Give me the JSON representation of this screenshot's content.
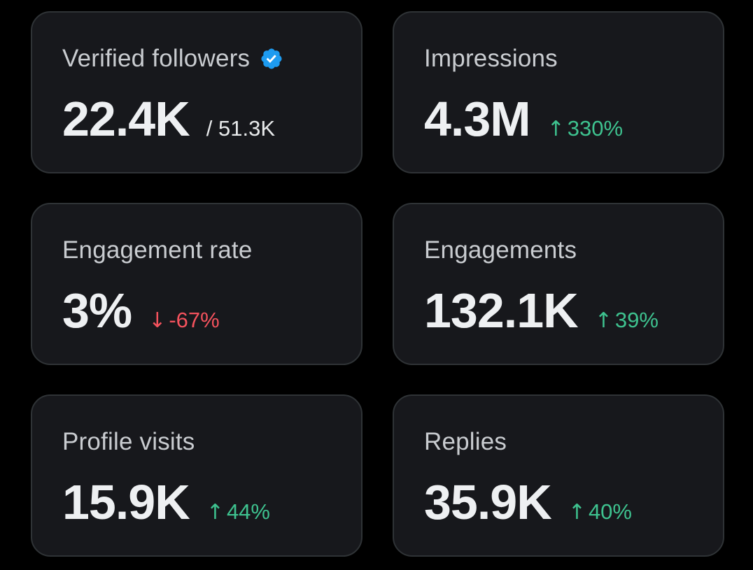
{
  "colors": {
    "background": "#000000",
    "card": "#17181c",
    "card_border": "#2f3336",
    "label": "#c9ccd0",
    "value": "#eef0f2",
    "positive": "#3ec28f",
    "negative": "#f4525d",
    "verified_badge": "#1d9bf0"
  },
  "cards": [
    {
      "label": "Verified followers",
      "icon": "verified-badge-icon",
      "value": "22.4K",
      "total": "/ 51.3K"
    },
    {
      "label": "Impressions",
      "value": "4.3M",
      "change": {
        "direction": "up",
        "arrow": "↑",
        "text": "330%"
      }
    },
    {
      "label": "Engagement rate",
      "value": "3%",
      "change": {
        "direction": "down",
        "arrow": "↓",
        "text": "-67%"
      }
    },
    {
      "label": "Engagements",
      "value": "132.1K",
      "change": {
        "direction": "up",
        "arrow": "↑",
        "text": "39%"
      }
    },
    {
      "label": "Profile visits",
      "value": "15.9K",
      "change": {
        "direction": "up",
        "arrow": "↑",
        "text": "44%"
      }
    },
    {
      "label": "Replies",
      "value": "35.9K",
      "change": {
        "direction": "up",
        "arrow": "↑",
        "text": "40%"
      }
    }
  ]
}
